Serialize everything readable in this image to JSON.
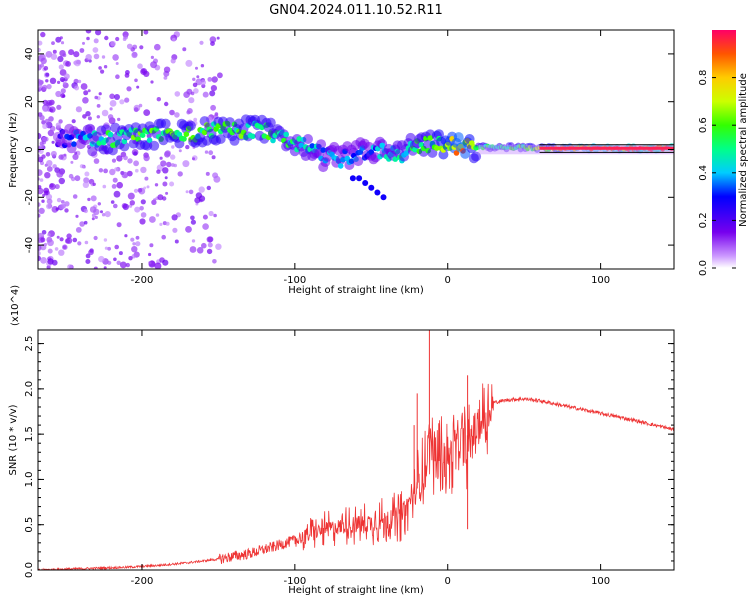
{
  "title": "GN04.2024.011.10.52.R11",
  "chart_data": [
    {
      "type": "heatmap",
      "title": "GN04.2024.011.10.52.R11",
      "xlabel": "Height of straight line (km)",
      "ylabel": "Frequency (Hz)",
      "xlim": [
        -268,
        148
      ],
      "ylim": [
        -50,
        50
      ],
      "xticks": [
        "-200",
        "-100",
        "0",
        "100"
      ],
      "yticks": [
        "40",
        "20",
        "0",
        "-20",
        "-40"
      ],
      "colorbar": {
        "label": "Normalized spectral amplitude",
        "range": [
          0,
          1
        ],
        "ticks": [
          "0.0",
          "0.2",
          "0.4",
          "0.6",
          "0.8"
        ]
      },
      "ridge": [
        {
          "x": -255,
          "y": 5,
          "a": 0.25
        },
        {
          "x": -240,
          "y": 4,
          "a": 0.35
        },
        {
          "x": -225,
          "y": 4,
          "a": 0.5
        },
        {
          "x": -210,
          "y": 5,
          "a": 0.55
        },
        {
          "x": -195,
          "y": 6,
          "a": 0.55
        },
        {
          "x": -180,
          "y": 7,
          "a": 0.55
        },
        {
          "x": -165,
          "y": 7,
          "a": 0.55
        },
        {
          "x": -150,
          "y": 8,
          "a": 0.55
        },
        {
          "x": -135,
          "y": 8,
          "a": 0.55
        },
        {
          "x": -120,
          "y": 8,
          "a": 0.55
        },
        {
          "x": -110,
          "y": 5,
          "a": 0.5
        },
        {
          "x": -100,
          "y": 3,
          "a": 0.45
        },
        {
          "x": -90,
          "y": 0,
          "a": 0.4
        },
        {
          "x": -80,
          "y": -3,
          "a": 0.35
        },
        {
          "x": -70,
          "y": -4,
          "a": 0.35
        },
        {
          "x": -60,
          "y": -2,
          "a": 0.35
        },
        {
          "x": -50,
          "y": 0,
          "a": 0.35
        },
        {
          "x": -40,
          "y": -1,
          "a": 0.4
        },
        {
          "x": -30,
          "y": -2,
          "a": 0.45
        },
        {
          "x": -20,
          "y": 2,
          "a": 0.5
        },
        {
          "x": -10,
          "y": 2,
          "a": 0.55
        },
        {
          "x": 0,
          "y": 2,
          "a": 0.7
        },
        {
          "x": 10,
          "y": 1,
          "a": 0.8
        },
        {
          "x": 20,
          "y": 1,
          "a": 0.5
        },
        {
          "x": 40,
          "y": 1,
          "a": 0.5
        },
        {
          "x": 60,
          "y": 0.5,
          "a": 0.6
        },
        {
          "x": 80,
          "y": 0.5,
          "a": 0.8
        },
        {
          "x": 100,
          "y": 0.5,
          "a": 0.9
        },
        {
          "x": 120,
          "y": 0.5,
          "a": 0.95
        },
        {
          "x": 148,
          "y": 0.5,
          "a": 1.0
        }
      ]
    },
    {
      "type": "line",
      "xlabel": "Height of straight line (km)",
      "ylabel": "SNR (10 * v/v)",
      "y_multiplier": "(x10^4)",
      "xlim": [
        -268,
        148
      ],
      "ylim": [
        0,
        2.65
      ],
      "xticks": [
        "-200",
        "-100",
        "0",
        "100"
      ],
      "yticks": [
        "0.0",
        "0.5",
        "1.0",
        "1.5",
        "2.0",
        "2.5"
      ],
      "color": "#ee3333",
      "series": [
        {
          "x": [
            -268,
            -250,
            -230,
            -210,
            -190,
            -170,
            -150,
            -130,
            -115,
            -100,
            -90,
            -80,
            -70,
            -60,
            -50,
            -40,
            -30,
            -25,
            -20,
            -15,
            -12,
            -10,
            -8,
            -5,
            0,
            5,
            10,
            13,
            15,
            20,
            25,
            30,
            40,
            50,
            60,
            80,
            100,
            120,
            148
          ],
          "y": [
            0.0,
            0.01,
            0.02,
            0.03,
            0.05,
            0.08,
            0.12,
            0.18,
            0.25,
            0.33,
            0.4,
            0.45,
            0.48,
            0.5,
            0.52,
            0.55,
            0.6,
            0.75,
            0.9,
            1.1,
            1.5,
            1.3,
            1.2,
            1.3,
            1.2,
            1.35,
            1.45,
            1.3,
            1.5,
            1.6,
            1.7,
            1.85,
            1.88,
            1.89,
            1.87,
            1.8,
            1.73,
            1.66,
            1.55
          ]
        }
      ],
      "spikes": [
        {
          "x": -12,
          "y": 2.65
        },
        {
          "x": 13,
          "y": 2.15
        },
        {
          "x": 13,
          "y": 0.45
        },
        {
          "x": -20,
          "y": 1.95
        },
        {
          "x": -22,
          "y": 1.6
        }
      ]
    }
  ]
}
